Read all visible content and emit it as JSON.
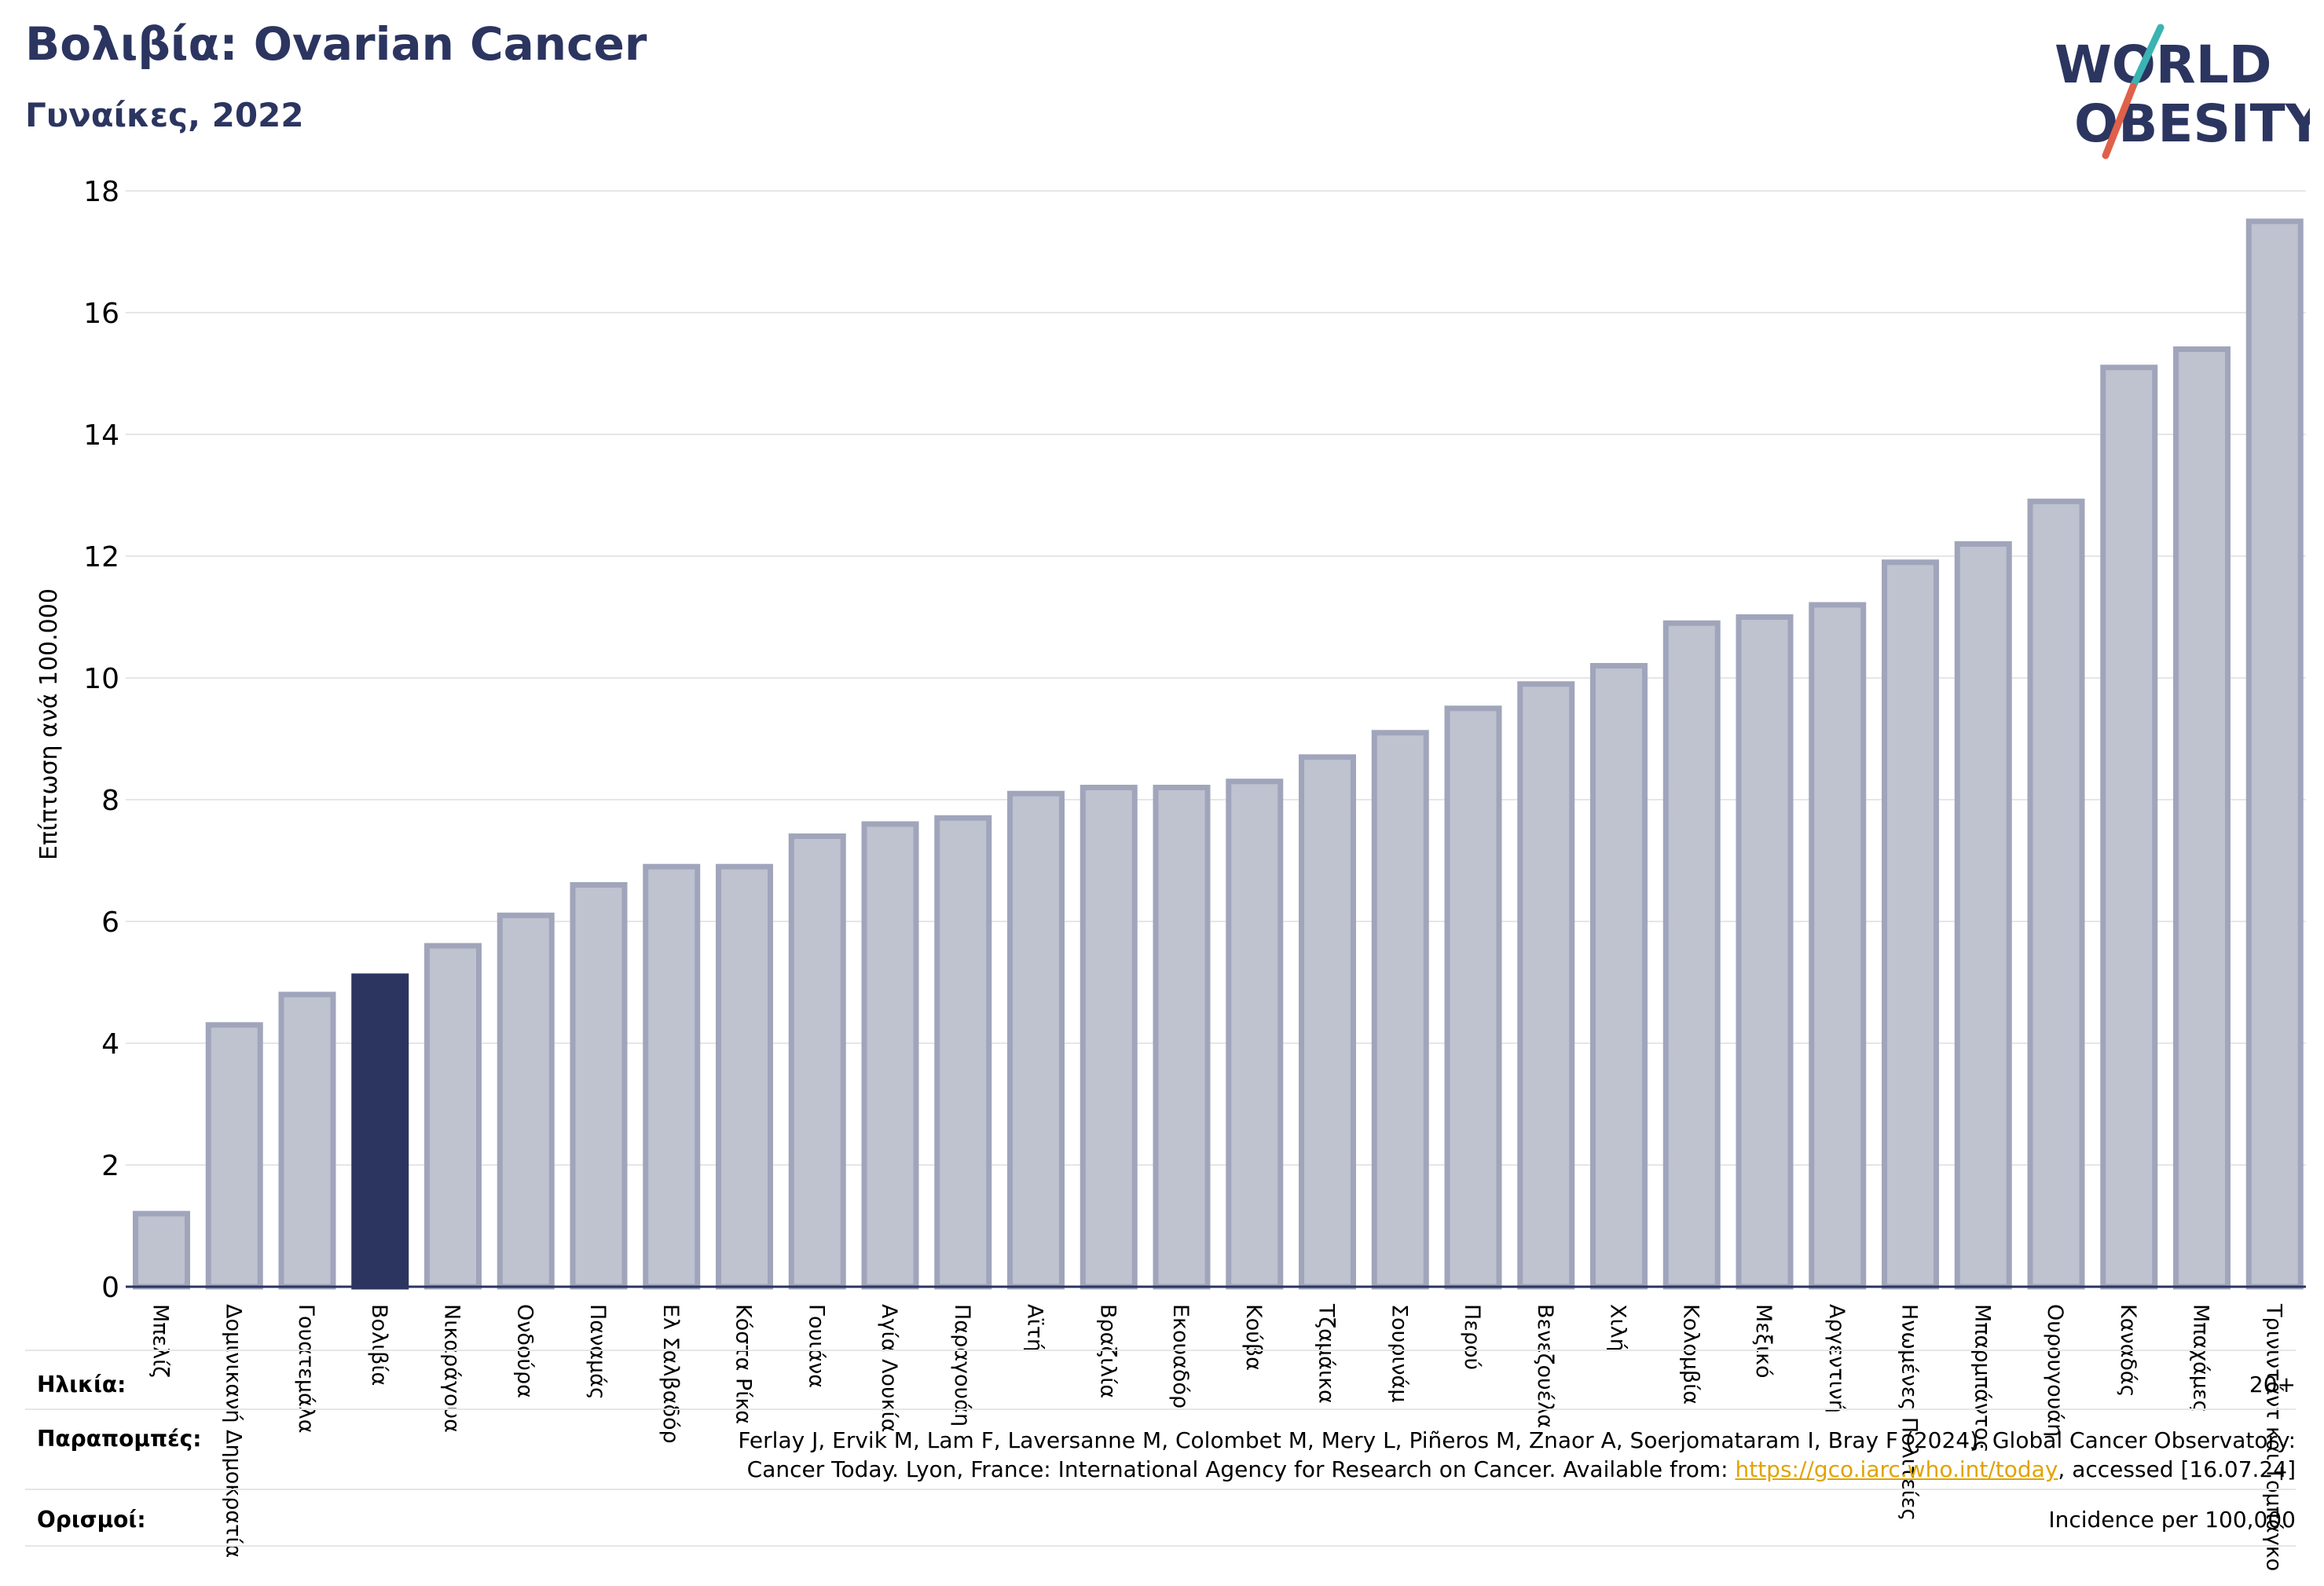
{
  "header": {
    "title": "Βολιβία: Ovarian Cancer",
    "subtitle": "Γυναίκες, 2022"
  },
  "logo": {
    "line1": "WORLD",
    "line2": "OBESITY"
  },
  "colors": {
    "highlight": "#2b3560",
    "bar_fill": "#bfc2cf",
    "bar_stroke": "#a0a5bb",
    "axis": "#2b3560",
    "grid": "#e6e6e6",
    "logo_teal": "#3bb3b3",
    "logo_red": "#e0604a",
    "link": "#e0a300"
  },
  "chart_data": {
    "type": "bar",
    "title": "Βολιβία: Ovarian Cancer",
    "subtitle": "Γυναίκες, 2022",
    "ylabel": "Επίπτωση ανά 100.000",
    "xlabel": "",
    "ylim": [
      0,
      18
    ],
    "yticks": [
      0,
      2,
      4,
      6,
      8,
      10,
      12,
      14,
      16,
      18
    ],
    "grid": true,
    "highlight": "Βολιβία",
    "categories": [
      "Μπελίζ",
      "Δομινικανή Δημοκρατία",
      "Γουατεμάλα",
      "Βολιβία",
      "Νικαράγουα",
      "Ονδούρα",
      "Παναμάς",
      "Ελ Σαλβαδόρ",
      "Κόστα Ρίκα",
      "Γουιάνα",
      "Αγία Λουκία",
      "Παραγουάη",
      "Αϊτή",
      "Βραζιλία",
      "Εκουαδόρ",
      "Κούβα",
      "Τζαμάικα",
      "Σουρινάμ",
      "Περού",
      "Βενεζουέλα",
      "Χιλή",
      "Κολομβία",
      "Μεξικό",
      "Αργεντινή",
      "Ηνωμένες Πολιτείες",
      "Μπαρμπάντος",
      "Ουρουγουάη",
      "Καναδάς",
      "Μπαχάμες",
      "Τρινιντάντ και Τομπάγκο"
    ],
    "values": [
      1.2,
      4.3,
      4.8,
      5.1,
      5.6,
      6.1,
      6.6,
      6.9,
      6.9,
      7.4,
      7.6,
      7.7,
      8.1,
      8.2,
      8.2,
      8.3,
      8.7,
      9.1,
      9.5,
      9.9,
      10.2,
      10.9,
      11.0,
      11.2,
      11.9,
      12.2,
      12.9,
      15.1,
      15.4,
      17.5
    ]
  },
  "footer": {
    "age_label": "Ηλικία:",
    "age_value": "20+",
    "refs_label": "Παραπομπές:",
    "refs_line1": "Ferlay J, Ervik M, Lam F, Laversanne M, Colombet M, Mery L, Piñeros M, Znaor A, Soerjomataram I, Bray F (2024). Global Cancer Observatory:",
    "refs_line2_pre": "Cancer Today. Lyon, France: International Agency for Research on Cancer. Available from: ",
    "refs_link": "https://gco.iarc.who.int/today",
    "refs_line2_post": ", accessed [16.07.24]",
    "def_label": "Ορισμοί:",
    "def_value": "Incidence per 100,000"
  }
}
